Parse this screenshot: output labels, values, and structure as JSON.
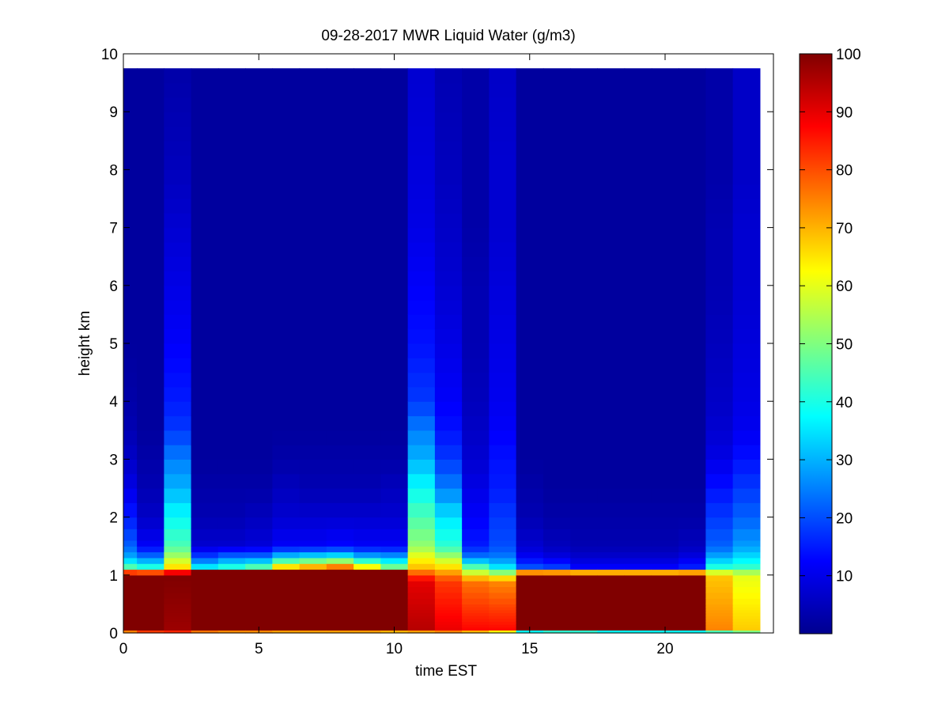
{
  "chart_data": {
    "type": "heatmap",
    "title": "09-28-2017 MWR Liquid Water (g/m3)",
    "xlabel": "time EST",
    "ylabel": "height km",
    "xlim": [
      0,
      24
    ],
    "ylim": [
      0,
      10
    ],
    "x_ticks": [
      0,
      5,
      10,
      15,
      20
    ],
    "y_ticks": [
      0,
      1,
      2,
      3,
      4,
      5,
      6,
      7,
      8,
      9,
      10
    ],
    "colorbar": {
      "colormap": "jet",
      "range": [
        0,
        100
      ],
      "ticks": [
        10,
        20,
        30,
        40,
        50,
        60,
        70,
        80,
        90,
        100
      ]
    },
    "column_centers_hours": [
      0,
      1,
      2,
      3,
      4,
      5,
      6,
      7,
      8,
      9,
      10,
      11,
      12,
      13,
      14,
      15,
      16,
      17,
      18,
      19,
      20,
      21,
      22,
      23
    ],
    "height_edges_km": [
      0,
      0.05,
      0.1,
      0.15,
      0.2,
      0.25,
      0.3,
      0.35,
      0.4,
      0.45,
      0.5,
      0.6,
      0.7,
      0.8,
      0.9,
      1.0,
      1.1,
      1.2,
      1.3,
      1.4,
      1.5,
      1.6,
      1.8,
      2.0,
      2.25,
      2.5,
      2.75,
      3.0,
      3.25,
      3.5,
      3.75,
      4.0,
      4.25,
      4.5,
      4.75,
      5.0,
      5.25,
      5.5,
      5.75,
      6.0,
      6.25,
      6.5,
      6.75,
      7.0,
      7.25,
      7.5,
      7.75,
      8.0,
      8.25,
      8.5,
      8.75,
      9.0,
      9.25,
      9.5,
      9.75
    ],
    "profiles": [
      {
        "hour": 0,
        "surface": 75,
        "low": [
          100,
          100
        ],
        "cloud_top": 1.0,
        "above": [
          45,
          30,
          22,
          15,
          10,
          7,
          5,
          4,
          3,
          3,
          3,
          3,
          3
        ]
      },
      {
        "hour": 1,
        "surface": 82,
        "low": [
          100,
          100
        ],
        "cloud_top": 1.0,
        "above": [
          40,
          25,
          12,
          7,
          5,
          4,
          3,
          3,
          3,
          3,
          3,
          3,
          3
        ]
      },
      {
        "hour": 2,
        "surface": 84,
        "low": [
          97,
          100
        ],
        "cloud_top": 1.0,
        "above": [
          65,
          55,
          45,
          38,
          30,
          25,
          18,
          15,
          12,
          10,
          8,
          6,
          4
        ]
      },
      {
        "hour": 3,
        "surface": 76,
        "low": [
          100,
          100
        ],
        "cloud_top": 1.1,
        "above": [
          35,
          20,
          8,
          5,
          4,
          3,
          3,
          3,
          3,
          3,
          3,
          3,
          3
        ]
      },
      {
        "hour": 4,
        "surface": 74,
        "low": [
          100,
          100
        ],
        "cloud_top": 1.1,
        "above": [
          40,
          25,
          8,
          5,
          4,
          3,
          3,
          3,
          3,
          3,
          3,
          3,
          3
        ]
      },
      {
        "hour": 5,
        "surface": 74,
        "low": [
          100,
          100
        ],
        "cloud_top": 1.1,
        "above": [
          45,
          25,
          9,
          6,
          4,
          3,
          3,
          3,
          3,
          3,
          3,
          3,
          3
        ]
      },
      {
        "hour": 6,
        "surface": 72,
        "low": [
          100,
          100
        ],
        "cloud_top": 1.1,
        "above": [
          65,
          35,
          12,
          8,
          6,
          4,
          3,
          3,
          3,
          3,
          3,
          3,
          3
        ]
      },
      {
        "hour": 7,
        "surface": 72,
        "low": [
          100,
          100
        ],
        "cloud_top": 1.1,
        "above": [
          70,
          38,
          12,
          8,
          5,
          4,
          3,
          3,
          3,
          3,
          3,
          3,
          3
        ]
      },
      {
        "hour": 8,
        "surface": 72,
        "low": [
          100,
          100
        ],
        "cloud_top": 1.1,
        "above": [
          75,
          40,
          13,
          8,
          5,
          4,
          3,
          3,
          3,
          3,
          3,
          3,
          3
        ]
      },
      {
        "hour": 9,
        "surface": 72,
        "low": [
          100,
          100
        ],
        "cloud_top": 1.1,
        "above": [
          62,
          32,
          12,
          8,
          5,
          4,
          3,
          3,
          3,
          3,
          3,
          3,
          3
        ]
      },
      {
        "hour": 10,
        "surface": 70,
        "low": [
          100,
          100
        ],
        "cloud_top": 1.1,
        "above": [
          48,
          30,
          12,
          8,
          6,
          4,
          3,
          3,
          3,
          3,
          3,
          3,
          3
        ]
      },
      {
        "hour": 11,
        "surface": 72,
        "low": [
          95,
          90
        ],
        "cloud_top": 0.9,
        "above": [
          68,
          62,
          52,
          45,
          38,
          30,
          25,
          18,
          14,
          12,
          10,
          9,
          8
        ]
      },
      {
        "hour": 12,
        "surface": 75,
        "low": [
          90,
          82
        ],
        "cloud_top": 0.9,
        "above": [
          65,
          55,
          42,
          35,
          25,
          18,
          14,
          12,
          10,
          8,
          7,
          6,
          5
        ]
      },
      {
        "hour": 13,
        "surface": 70,
        "low": [
          88,
          76
        ],
        "cloud_top": 0.9,
        "above": [
          45,
          25,
          15,
          12,
          10,
          8,
          7,
          6,
          5,
          5,
          4,
          4,
          4
        ]
      },
      {
        "hour": 14,
        "surface": 62,
        "low": [
          88,
          74
        ],
        "cloud_top": 0.9,
        "above": [
          35,
          25,
          20,
          18,
          15,
          14,
          12,
          11,
          10,
          9,
          8,
          8,
          7
        ]
      },
      {
        "hour": 15,
        "surface": 38,
        "low": [
          100,
          100
        ],
        "cloud_top": 1.0,
        "above": [
          20,
          12,
          8,
          5,
          4,
          3,
          3,
          3,
          3,
          3,
          3,
          3,
          3
        ]
      },
      {
        "hour": 16,
        "surface": 42,
        "low": [
          100,
          100
        ],
        "cloud_top": 1.0,
        "above": [
          18,
          10,
          6,
          4,
          3,
          3,
          3,
          3,
          3,
          3,
          3,
          3,
          3
        ]
      },
      {
        "hour": 17,
        "surface": 42,
        "low": [
          100,
          100
        ],
        "cloud_top": 1.0,
        "above": [
          12,
          8,
          5,
          4,
          3,
          3,
          3,
          3,
          3,
          3,
          3,
          3,
          3
        ]
      },
      {
        "hour": 18,
        "surface": 38,
        "low": [
          100,
          100
        ],
        "cloud_top": 1.0,
        "above": [
          12,
          8,
          5,
          4,
          3,
          3,
          3,
          3,
          3,
          3,
          3,
          3,
          3
        ]
      },
      {
        "hour": 19,
        "surface": 38,
        "low": [
          100,
          100
        ],
        "cloud_top": 1.0,
        "above": [
          12,
          8,
          5,
          4,
          3,
          3,
          3,
          3,
          3,
          3,
          3,
          3,
          3
        ]
      },
      {
        "hour": 20,
        "surface": 38,
        "low": [
          100,
          100
        ],
        "cloud_top": 1.0,
        "above": [
          12,
          8,
          5,
          4,
          3,
          3,
          3,
          3,
          3,
          3,
          3,
          3,
          3
        ]
      },
      {
        "hour": 21,
        "surface": 38,
        "low": [
          100,
          100
        ],
        "cloud_top": 1.0,
        "above": [
          15,
          10,
          6,
          4,
          3,
          3,
          3,
          3,
          3,
          3,
          3,
          3,
          3
        ]
      },
      {
        "hour": 22,
        "surface": 45,
        "low": [
          75,
          68
        ],
        "cloud_top": 1.0,
        "above": [
          40,
          30,
          22,
          18,
          14,
          10,
          8,
          7,
          6,
          5,
          5,
          4,
          4
        ]
      },
      {
        "hour": 23,
        "surface": 50,
        "low": [
          68,
          60
        ],
        "cloud_top": 1.0,
        "above": [
          42,
          35,
          28,
          22,
          18,
          14,
          11,
          10,
          9,
          8,
          8,
          7,
          7
        ]
      }
    ]
  }
}
